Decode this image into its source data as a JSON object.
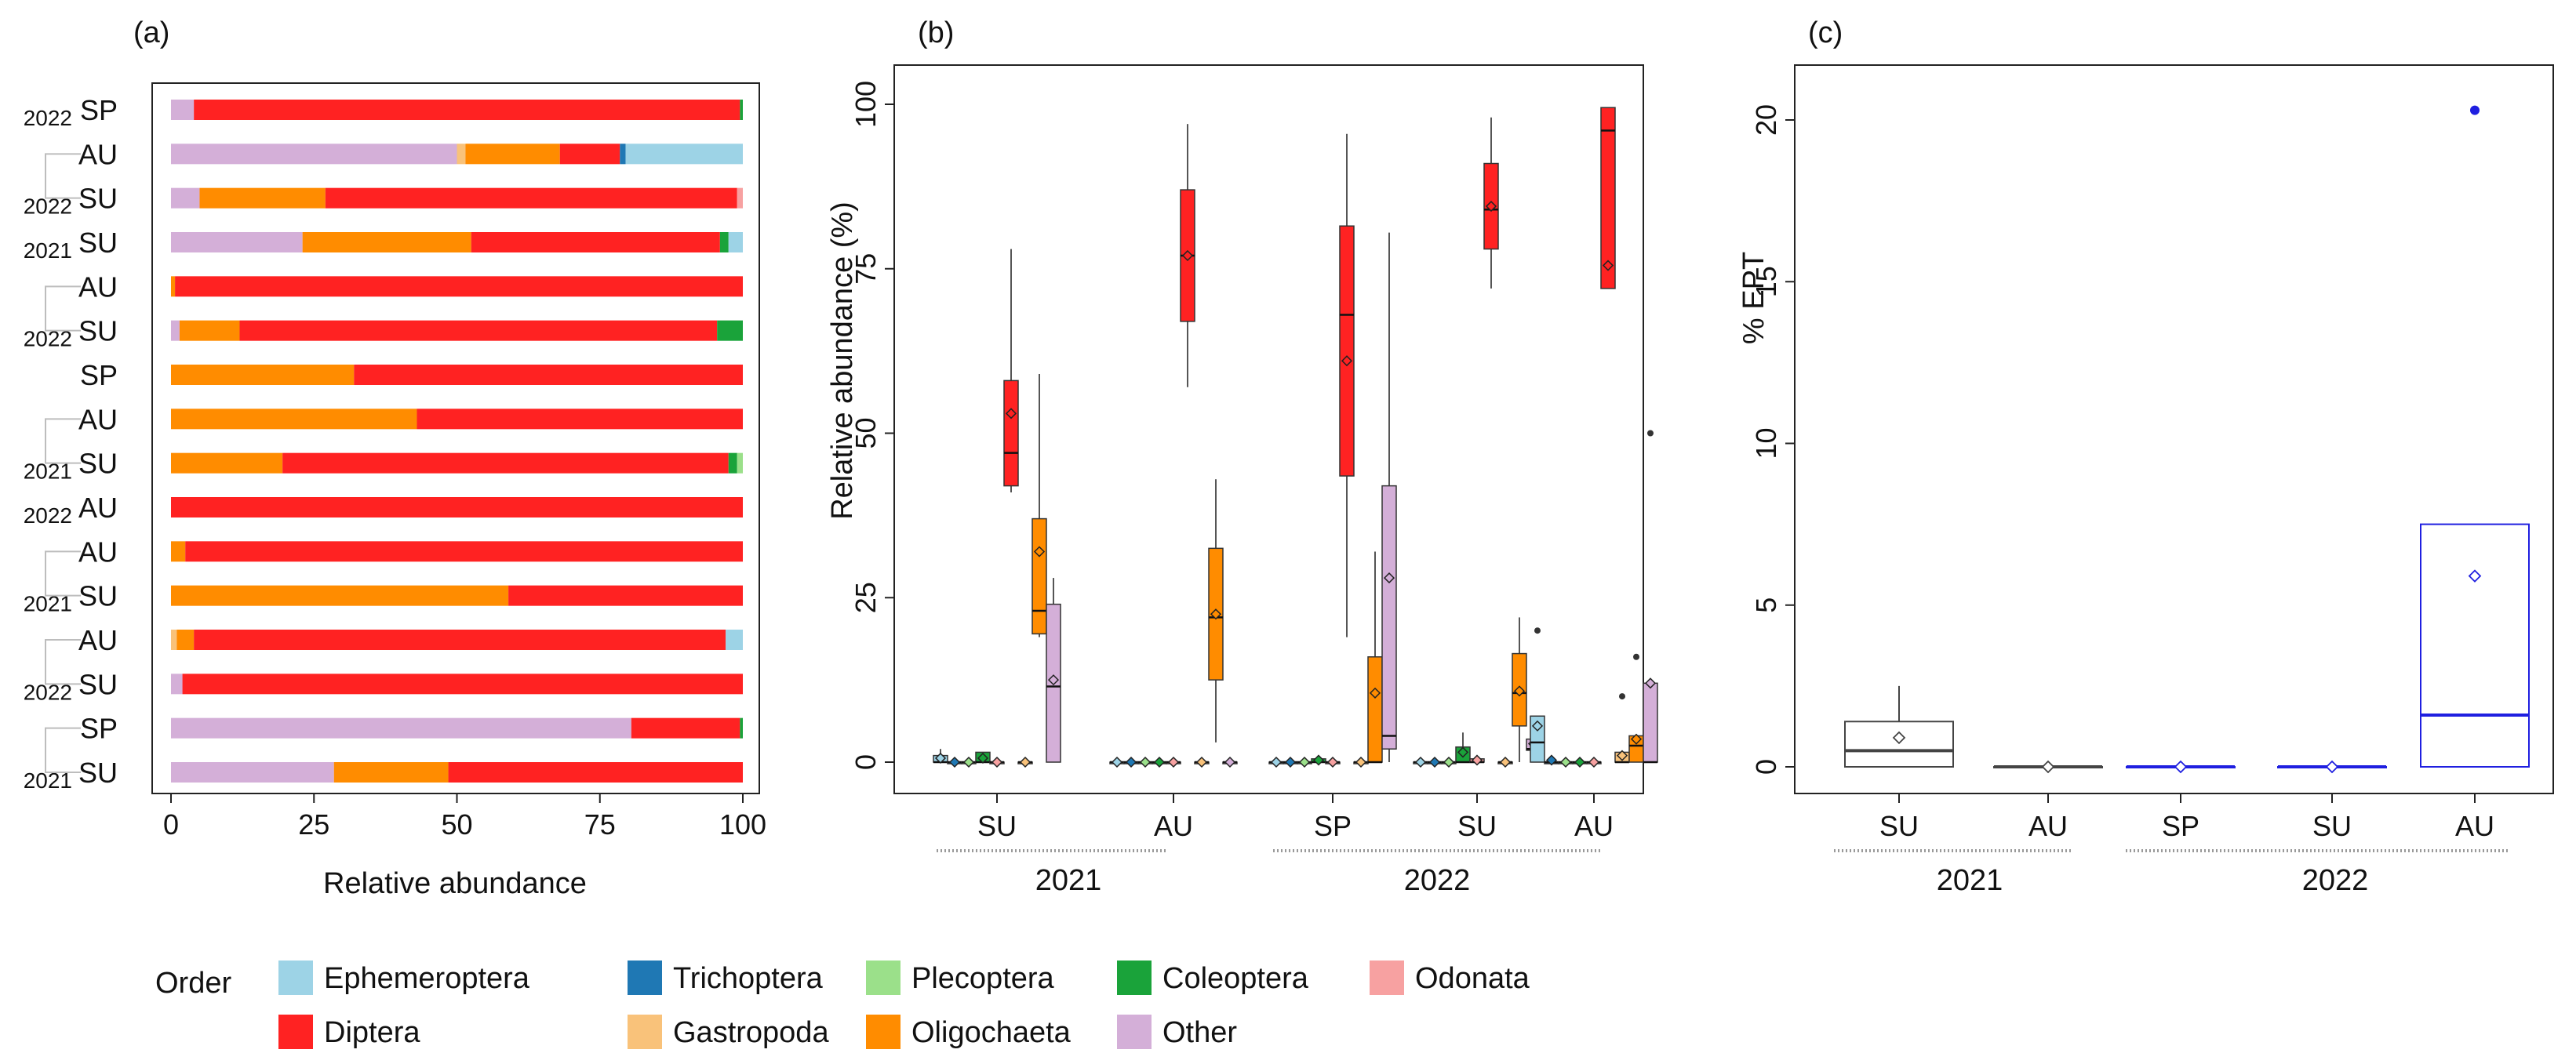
{
  "colors": {
    "Ephemeroptera": "#9dd3e6",
    "Trichoptera": "#1f78b4",
    "Plecoptera": "#9be08a",
    "Coleoptera": "#1aa33a",
    "Odonata": "#f7a1a1",
    "Diptera": "#ff2222",
    "Gastropoda": "#f9c27a",
    "Oligochaeta": "#ff8c00",
    "Other": "#d4afd8",
    "ept_2021": "#444444",
    "ept_2022": "#1f1fe0"
  },
  "legend": {
    "title": "Order",
    "items": [
      "Ephemeroptera",
      "Trichoptera",
      "Plecoptera",
      "Coleoptera",
      "Odonata",
      "Diptera",
      "Gastropoda",
      "Oligochaeta",
      "Other"
    ]
  },
  "chart_data": [
    {
      "panel": "(a)",
      "type": "bar",
      "orientation": "horizontal",
      "stacked": true,
      "xlabel": "Relative abundance",
      "xlim": [
        0,
        100
      ],
      "xticks": [
        "0",
        "25",
        "50",
        "75",
        "100"
      ],
      "series_order": [
        "Other",
        "Gastropoda",
        "Oligochaeta",
        "Diptera",
        "Coleoptera",
        "Trichoptera",
        "Plecoptera",
        "Odonata",
        "Ephemeroptera"
      ],
      "rows": [
        {
          "season": "SP",
          "year": "2022",
          "values": {
            "Other": 4,
            "Diptera": 95.5,
            "Coleoptera": 0.5
          }
        },
        {
          "season": "AU",
          "year": "",
          "values": {
            "Other": 50,
            "Oligochaeta": 16.5,
            "Gastropoda": 1.5,
            "Diptera": 10.5,
            "Trichoptera": 1,
            "Ephemeroptera": 20.5
          }
        },
        {
          "season": "SU",
          "year": "2022",
          "values": {
            "Other": 5,
            "Oligochaeta": 22,
            "Diptera": 72,
            "Odonata": 1
          }
        },
        {
          "season": "SU",
          "year": "2021",
          "values": {
            "Other": 23,
            "Oligochaeta": 29.5,
            "Diptera": 43.5,
            "Coleoptera": 1.5,
            "Ephemeroptera": 2.5
          }
        },
        {
          "season": "AU",
          "year": "",
          "values": {
            "Oligochaeta": 0.7,
            "Diptera": 99.3
          }
        },
        {
          "season": "SU",
          "year": "2022",
          "values": {
            "Other": 1.5,
            "Oligochaeta": 10.5,
            "Diptera": 83.5,
            "Coleoptera": 4.5
          }
        },
        {
          "season": "SP",
          "year": "",
          "values": {
            "Oligochaeta": 32,
            "Diptera": 68
          }
        },
        {
          "season": "AU",
          "year": "",
          "values": {
            "Oligochaeta": 43,
            "Diptera": 57
          }
        },
        {
          "season": "SU",
          "year": "2021",
          "values": {
            "Oligochaeta": 19.5,
            "Diptera": 78,
            "Coleoptera": 1.5,
            "Plecoptera": 1
          }
        },
        {
          "season": "AU",
          "year": "2022",
          "values": {
            "Diptera": 100
          }
        },
        {
          "season": "AU",
          "year": "",
          "values": {
            "Oligochaeta": 2.5,
            "Diptera": 97.5
          }
        },
        {
          "season": "SU",
          "year": "2021",
          "values": {
            "Oligochaeta": 59,
            "Diptera": 41
          }
        },
        {
          "season": "AU",
          "year": "",
          "values": {
            "Gastropoda": 1,
            "Oligochaeta": 3,
            "Diptera": 93,
            "Ephemeroptera": 3
          }
        },
        {
          "season": "SU",
          "year": "2022",
          "values": {
            "Other": 2,
            "Diptera": 98
          }
        },
        {
          "season": "SP",
          "year": "",
          "values": {
            "Other": 80.5,
            "Diptera": 19,
            "Coleoptera": 0.5
          }
        },
        {
          "season": "SU",
          "year": "2021",
          "values": {
            "Other": 28.5,
            "Oligochaeta": 20,
            "Diptera": 51.5
          }
        }
      ]
    },
    {
      "panel": "(b)",
      "type": "box",
      "ylabel": "Relative abundance (%)",
      "ylim": [
        -2,
        102
      ],
      "yticks": [
        "0",
        "25",
        "50",
        "75",
        "100"
      ],
      "groups": [
        {
          "label": "SU",
          "year": "2021",
          "boxes": [
            {
              "order": "Ephemeroptera",
              "min": 0,
              "q1": 0,
              "median": 0,
              "q3": 1,
              "max": 2,
              "mean": 0.6
            },
            {
              "order": "Trichoptera",
              "min": 0,
              "q1": 0,
              "median": 0,
              "q3": 0,
              "max": 0,
              "mean": 0
            },
            {
              "order": "Plecoptera",
              "min": 0,
              "q1": 0,
              "median": 0,
              "q3": 0,
              "max": 0,
              "mean": 0
            },
            {
              "order": "Coleoptera",
              "min": 0,
              "q1": 0,
              "median": 0,
              "q3": 1.5,
              "max": 1.5,
              "mean": 0.6
            },
            {
              "order": "Odonata",
              "min": 0,
              "q1": 0,
              "median": 0,
              "q3": 0,
              "max": 0,
              "mean": 0
            },
            {
              "order": "Diptera",
              "min": 41,
              "q1": 42,
              "median": 47,
              "q3": 58,
              "max": 78,
              "mean": 53
            },
            {
              "order": "Gastropoda",
              "min": 0,
              "q1": 0,
              "median": 0,
              "q3": 0,
              "max": 0,
              "mean": 0
            },
            {
              "order": "Oligochaeta",
              "min": 19,
              "q1": 19.5,
              "median": 23,
              "q3": 37,
              "max": 59,
              "mean": 32
            },
            {
              "order": "Other",
              "min": 0,
              "q1": 0,
              "median": 11.5,
              "q3": 24,
              "max": 28,
              "mean": 12.5
            }
          ]
        },
        {
          "label": "AU",
          "year": "2021",
          "boxes": [
            {
              "order": "Ephemeroptera",
              "min": 0,
              "q1": 0,
              "median": 0,
              "q3": 0,
              "max": 0,
              "mean": 0
            },
            {
              "order": "Trichoptera",
              "min": 0,
              "q1": 0,
              "median": 0,
              "q3": 0,
              "max": 0,
              "mean": 0
            },
            {
              "order": "Plecoptera",
              "min": 0,
              "q1": 0,
              "median": 0,
              "q3": 0,
              "max": 0,
              "mean": 0
            },
            {
              "order": "Coleoptera",
              "min": 0,
              "q1": 0,
              "median": 0,
              "q3": 0,
              "max": 0,
              "mean": 0
            },
            {
              "order": "Odonata",
              "min": 0,
              "q1": 0,
              "median": 0,
              "q3": 0,
              "max": 0,
              "mean": 0
            },
            {
              "order": "Diptera",
              "min": 57,
              "q1": 67,
              "median": 77,
              "q3": 87,
              "max": 97,
              "mean": 77
            },
            {
              "order": "Gastropoda",
              "min": 0,
              "q1": 0,
              "median": 0,
              "q3": 0,
              "max": 0,
              "mean": 0
            },
            {
              "order": "Oligochaeta",
              "min": 3,
              "q1": 12.5,
              "median": 22,
              "q3": 32.5,
              "max": 43,
              "mean": 22.5
            },
            {
              "order": "Other",
              "min": 0,
              "q1": 0,
              "median": 0,
              "q3": 0,
              "max": 0,
              "mean": 0
            }
          ]
        },
        {
          "label": "SP",
          "year": "2022",
          "boxes": [
            {
              "order": "Ephemeroptera",
              "min": 0,
              "q1": 0,
              "median": 0,
              "q3": 0,
              "max": 0,
              "mean": 0
            },
            {
              "order": "Trichoptera",
              "min": 0,
              "q1": 0,
              "median": 0,
              "q3": 0,
              "max": 0,
              "mean": 0
            },
            {
              "order": "Plecoptera",
              "min": 0,
              "q1": 0,
              "median": 0,
              "q3": 0,
              "max": 0,
              "mean": 0
            },
            {
              "order": "Coleoptera",
              "min": 0,
              "q1": 0,
              "median": 0,
              "q3": 0.5,
              "max": 0.5,
              "mean": 0.3
            },
            {
              "order": "Odonata",
              "min": 0,
              "q1": 0,
              "median": 0,
              "q3": 0,
              "max": 0,
              "mean": 0
            },
            {
              "order": "Diptera",
              "min": 19,
              "q1": 43.5,
              "median": 68,
              "q3": 81.5,
              "max": 95.5,
              "mean": 61
            },
            {
              "order": "Gastropoda",
              "min": 0,
              "q1": 0,
              "median": 0,
              "q3": 0,
              "max": 0,
              "mean": 0
            },
            {
              "order": "Oligochaeta",
              "min": 0,
              "q1": 0,
              "median": 0,
              "q3": 16,
              "max": 32,
              "mean": 10.5
            },
            {
              "order": "Other",
              "min": 0,
              "q1": 2,
              "median": 4,
              "q3": 42,
              "max": 80.5,
              "mean": 28
            }
          ]
        },
        {
          "label": "SU",
          "year": "2022",
          "boxes": [
            {
              "order": "Ephemeroptera",
              "min": 0,
              "q1": 0,
              "median": 0,
              "q3": 0,
              "max": 0,
              "mean": 0
            },
            {
              "order": "Trichoptera",
              "min": 0,
              "q1": 0,
              "median": 0,
              "q3": 0,
              "max": 0,
              "mean": 0
            },
            {
              "order": "Plecoptera",
              "min": 0,
              "q1": 0,
              "median": 0,
              "q3": 0,
              "max": 0,
              "mean": 0
            },
            {
              "order": "Coleoptera",
              "min": 0,
              "q1": 0,
              "median": 0,
              "q3": 2.3,
              "max": 4.5,
              "mean": 1.5
            },
            {
              "order": "Odonata",
              "min": 0,
              "q1": 0,
              "median": 0,
              "q3": 0.5,
              "max": 1,
              "mean": 0.3
            },
            {
              "order": "Diptera",
              "min": 72,
              "q1": 78,
              "median": 84,
              "q3": 91,
              "max": 98,
              "mean": 84.5
            },
            {
              "order": "Gastropoda",
              "min": 0,
              "q1": 0,
              "median": 0,
              "q3": 0,
              "max": 0,
              "mean": 0
            },
            {
              "order": "Oligochaeta",
              "min": 0,
              "q1": 5.5,
              "median": 10.5,
              "q3": 16.5,
              "max": 22,
              "mean": 10.8
            },
            {
              "order": "Other",
              "min": 1.5,
              "q1": 1.8,
              "median": 2,
              "q3": 3.5,
              "max": 5,
              "mean": 2.8
            }
          ]
        },
        {
          "label": "AU",
          "year": "2022",
          "boxes": [
            {
              "order": "Ephemeroptera",
              "min": 0,
              "q1": 0,
              "median": 3,
              "q3": 7,
              "max": 7,
              "mean": 5.5,
              "outliers": [
                20
              ]
            },
            {
              "order": "Trichoptera",
              "min": 0,
              "q1": 0,
              "median": 0,
              "q3": 0,
              "max": 0,
              "mean": 0.3
            },
            {
              "order": "Plecoptera",
              "min": 0,
              "q1": 0,
              "median": 0,
              "q3": 0,
              "max": 0,
              "mean": 0
            },
            {
              "order": "Coleoptera",
              "min": 0,
              "q1": 0,
              "median": 0,
              "q3": 0,
              "max": 0,
              "mean": 0
            },
            {
              "order": "Odonata",
              "min": 0,
              "q1": 0,
              "median": 0,
              "q3": 0,
              "max": 0,
              "mean": 0
            },
            {
              "order": "Diptera",
              "min": 72,
              "q1": 72,
              "median": 96,
              "q3": 99.5,
              "max": 99.5,
              "mean": 75.5
            },
            {
              "order": "Gastropoda",
              "min": 0,
              "q1": 0,
              "median": 0,
              "q3": 1.5,
              "max": 1.5,
              "mean": 1,
              "outliers": [
                10
              ]
            },
            {
              "order": "Oligochaeta",
              "min": 0,
              "q1": 0,
              "median": 2.5,
              "q3": 4,
              "max": 4,
              "mean": 3.5,
              "outliers": [
                16
              ]
            },
            {
              "order": "Other",
              "min": 0,
              "q1": 0,
              "median": 0,
              "q3": 12,
              "max": 12,
              "mean": 12,
              "outliers": [
                50
              ]
            }
          ]
        }
      ],
      "year_labels": [
        "2021",
        "2022"
      ]
    },
    {
      "panel": "(c)",
      "type": "box",
      "ylabel": "% EPT",
      "ylim": [
        -0.4,
        20.8
      ],
      "yticks": [
        "0",
        "5",
        "10",
        "15",
        "20"
      ],
      "boxes": [
        {
          "label": "SU",
          "year": "2021",
          "min": 0,
          "q1": 0,
          "median": 0.5,
          "q3": 1.4,
          "max": 2.5,
          "mean": 0.9
        },
        {
          "label": "AU",
          "year": "2021",
          "min": 0,
          "q1": 0,
          "median": 0,
          "q3": 0,
          "max": 0,
          "mean": 0
        },
        {
          "label": "SP",
          "year": "2022",
          "min": 0,
          "q1": 0,
          "median": 0,
          "q3": 0,
          "max": 0,
          "mean": 0
        },
        {
          "label": "SU",
          "year": "2022",
          "min": 0,
          "q1": 0,
          "median": 0,
          "q3": 0,
          "max": 0,
          "mean": 0
        },
        {
          "label": "AU",
          "year": "2022",
          "min": 0,
          "q1": 0,
          "median": 1.6,
          "q3": 7.5,
          "max": 7.5,
          "mean": 5.9,
          "outliers": [
            20.3
          ]
        }
      ],
      "year_labels": [
        "2021",
        "2022"
      ]
    }
  ]
}
